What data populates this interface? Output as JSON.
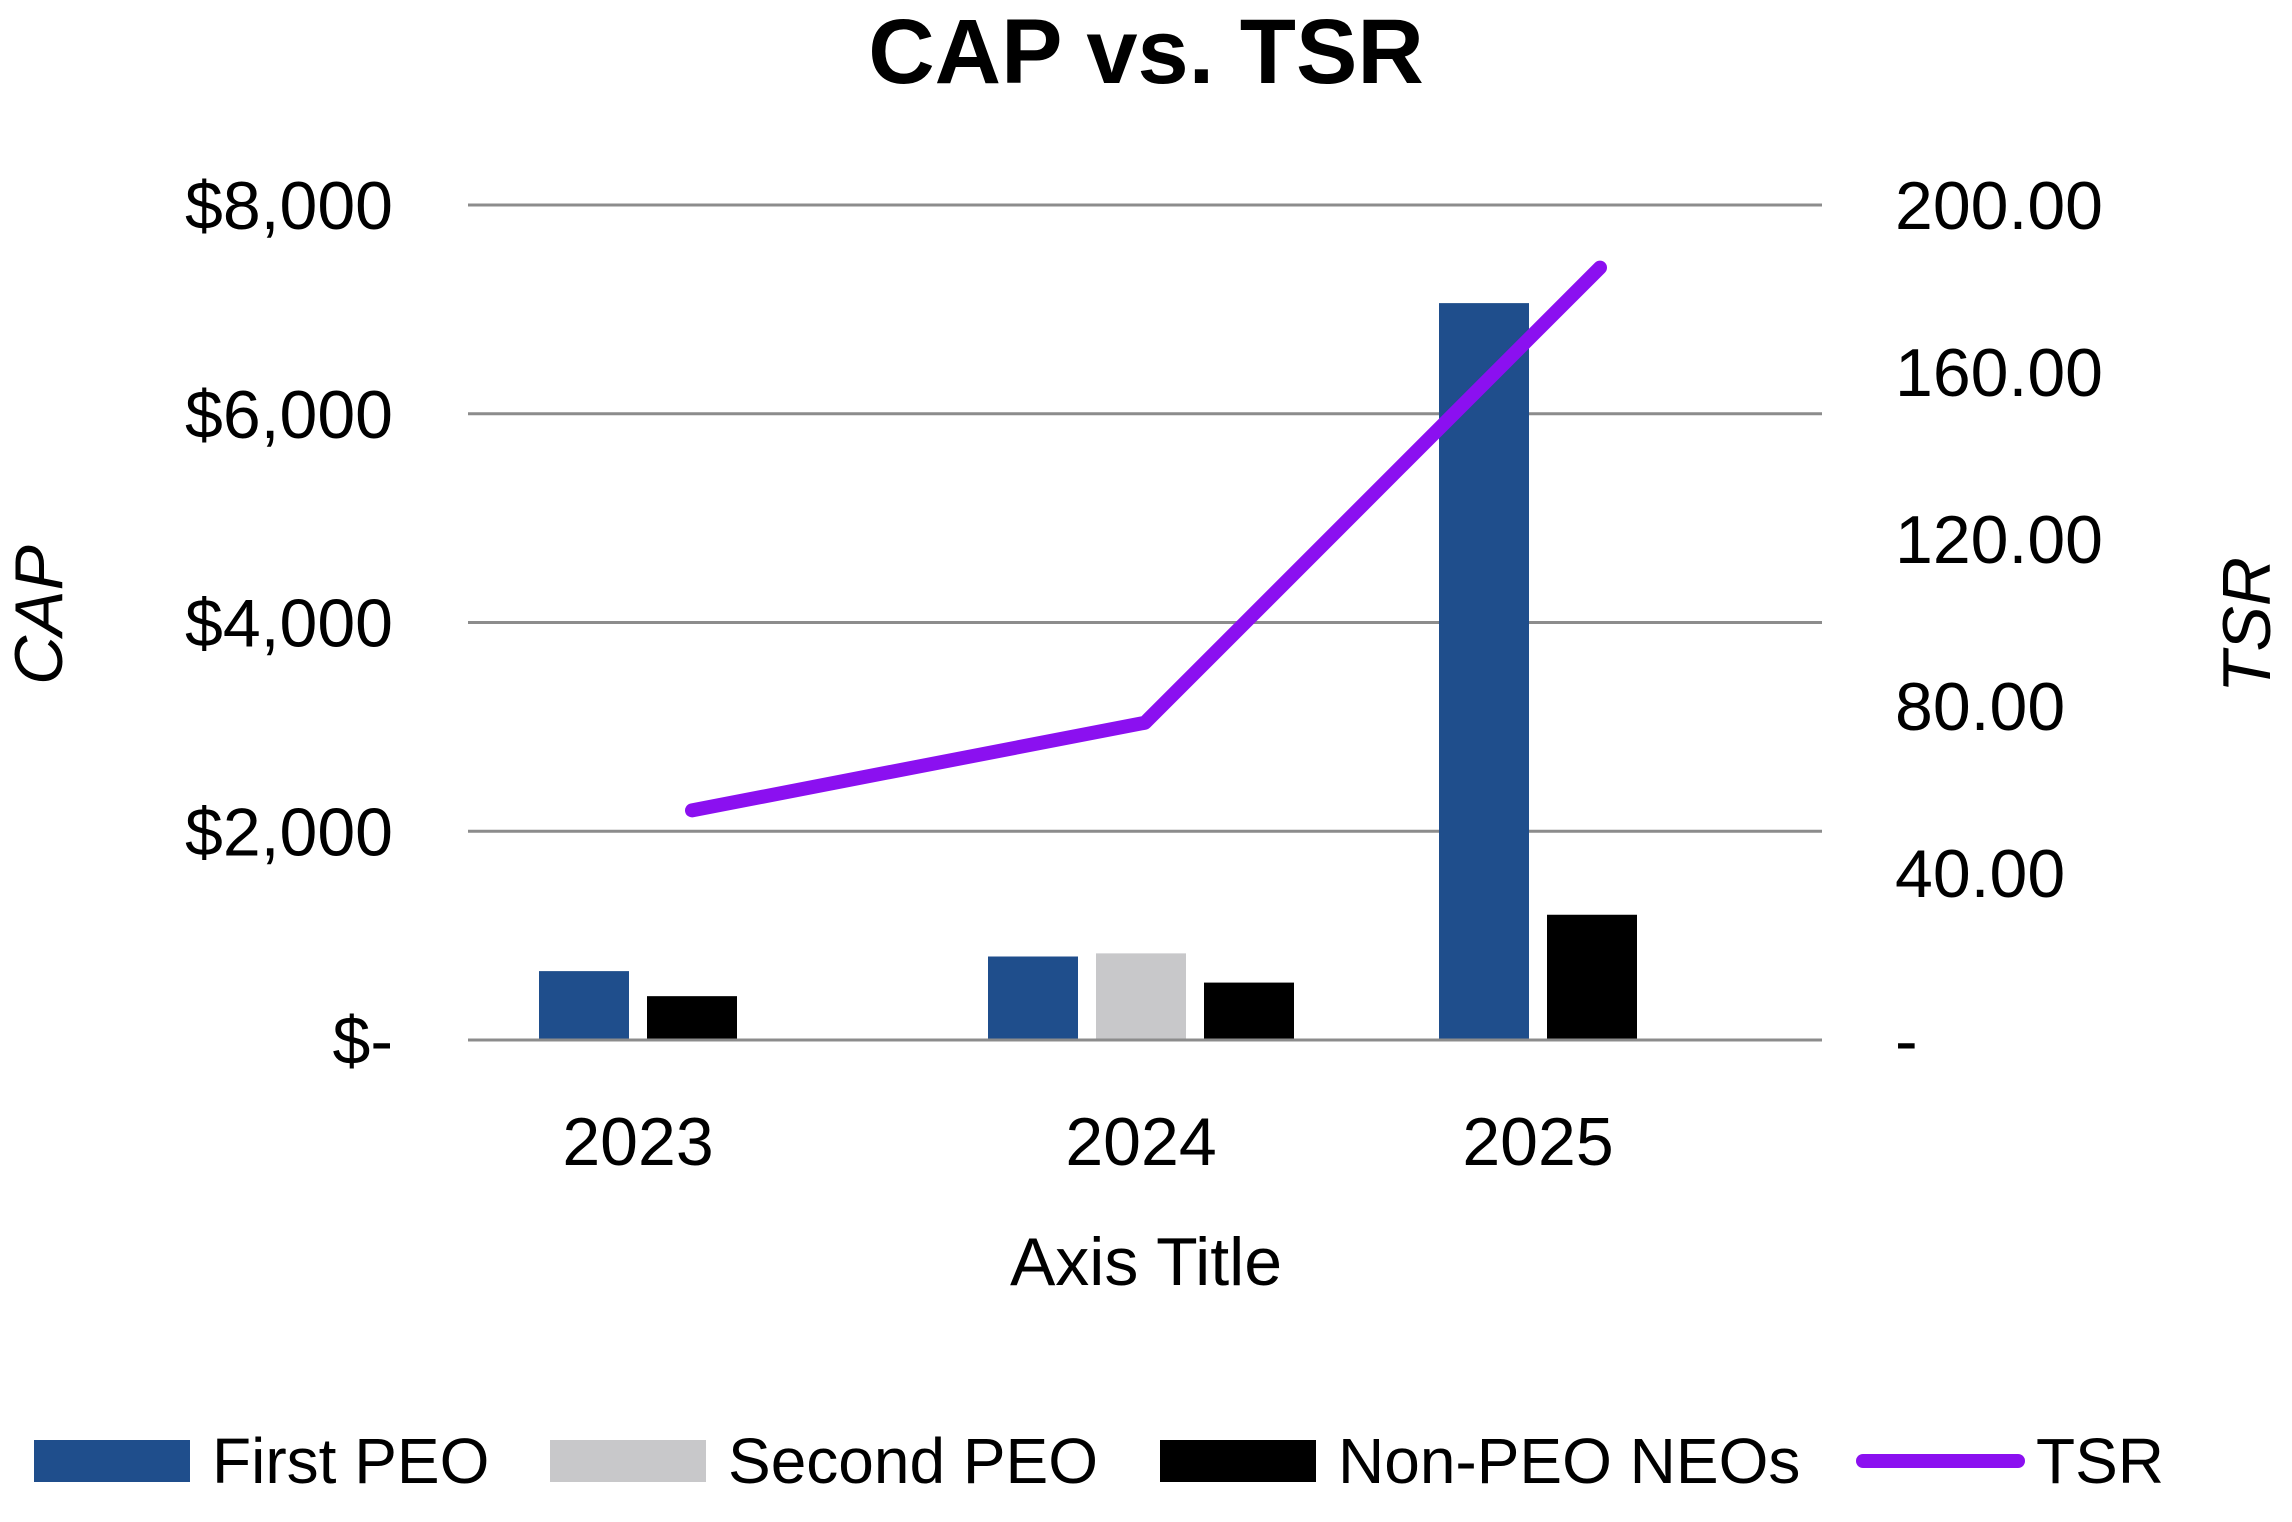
{
  "chart_data": {
    "type": "bar",
    "title": "CAP vs. TSR",
    "xlabel": "Axis Title",
    "ylabel": "CAP",
    "y2label": "TSR",
    "categories": [
      "2023",
      "2024",
      "2025"
    ],
    "ylim": [
      0,
      8000
    ],
    "y2lim": [
      0,
      200
    ],
    "y_ticks": [
      "$-",
      "$2,000",
      "$4,000",
      "$6,000",
      "$8,000"
    ],
    "y2_ticks": [
      "-",
      "40.00",
      "80.00",
      "120.00",
      "160.00",
      "200.00"
    ],
    "grid": true,
    "legend_position": "bottom",
    "series": [
      {
        "name": "First PEO",
        "type": "bar",
        "color": "#1F4E8C",
        "values": [
          660,
          800,
          7060
        ]
      },
      {
        "name": "Second PEO",
        "type": "bar",
        "color": "#C8C8CA",
        "values": [
          null,
          830,
          null
        ]
      },
      {
        "name": "Non-PEO NEOs",
        "type": "bar",
        "color": "#000000",
        "values": [
          420,
          550,
          1200
        ]
      },
      {
        "name": "TSR",
        "type": "line",
        "axis": "secondary",
        "color": "#8B10F0",
        "values": [
          55,
          76,
          185
        ]
      }
    ]
  }
}
